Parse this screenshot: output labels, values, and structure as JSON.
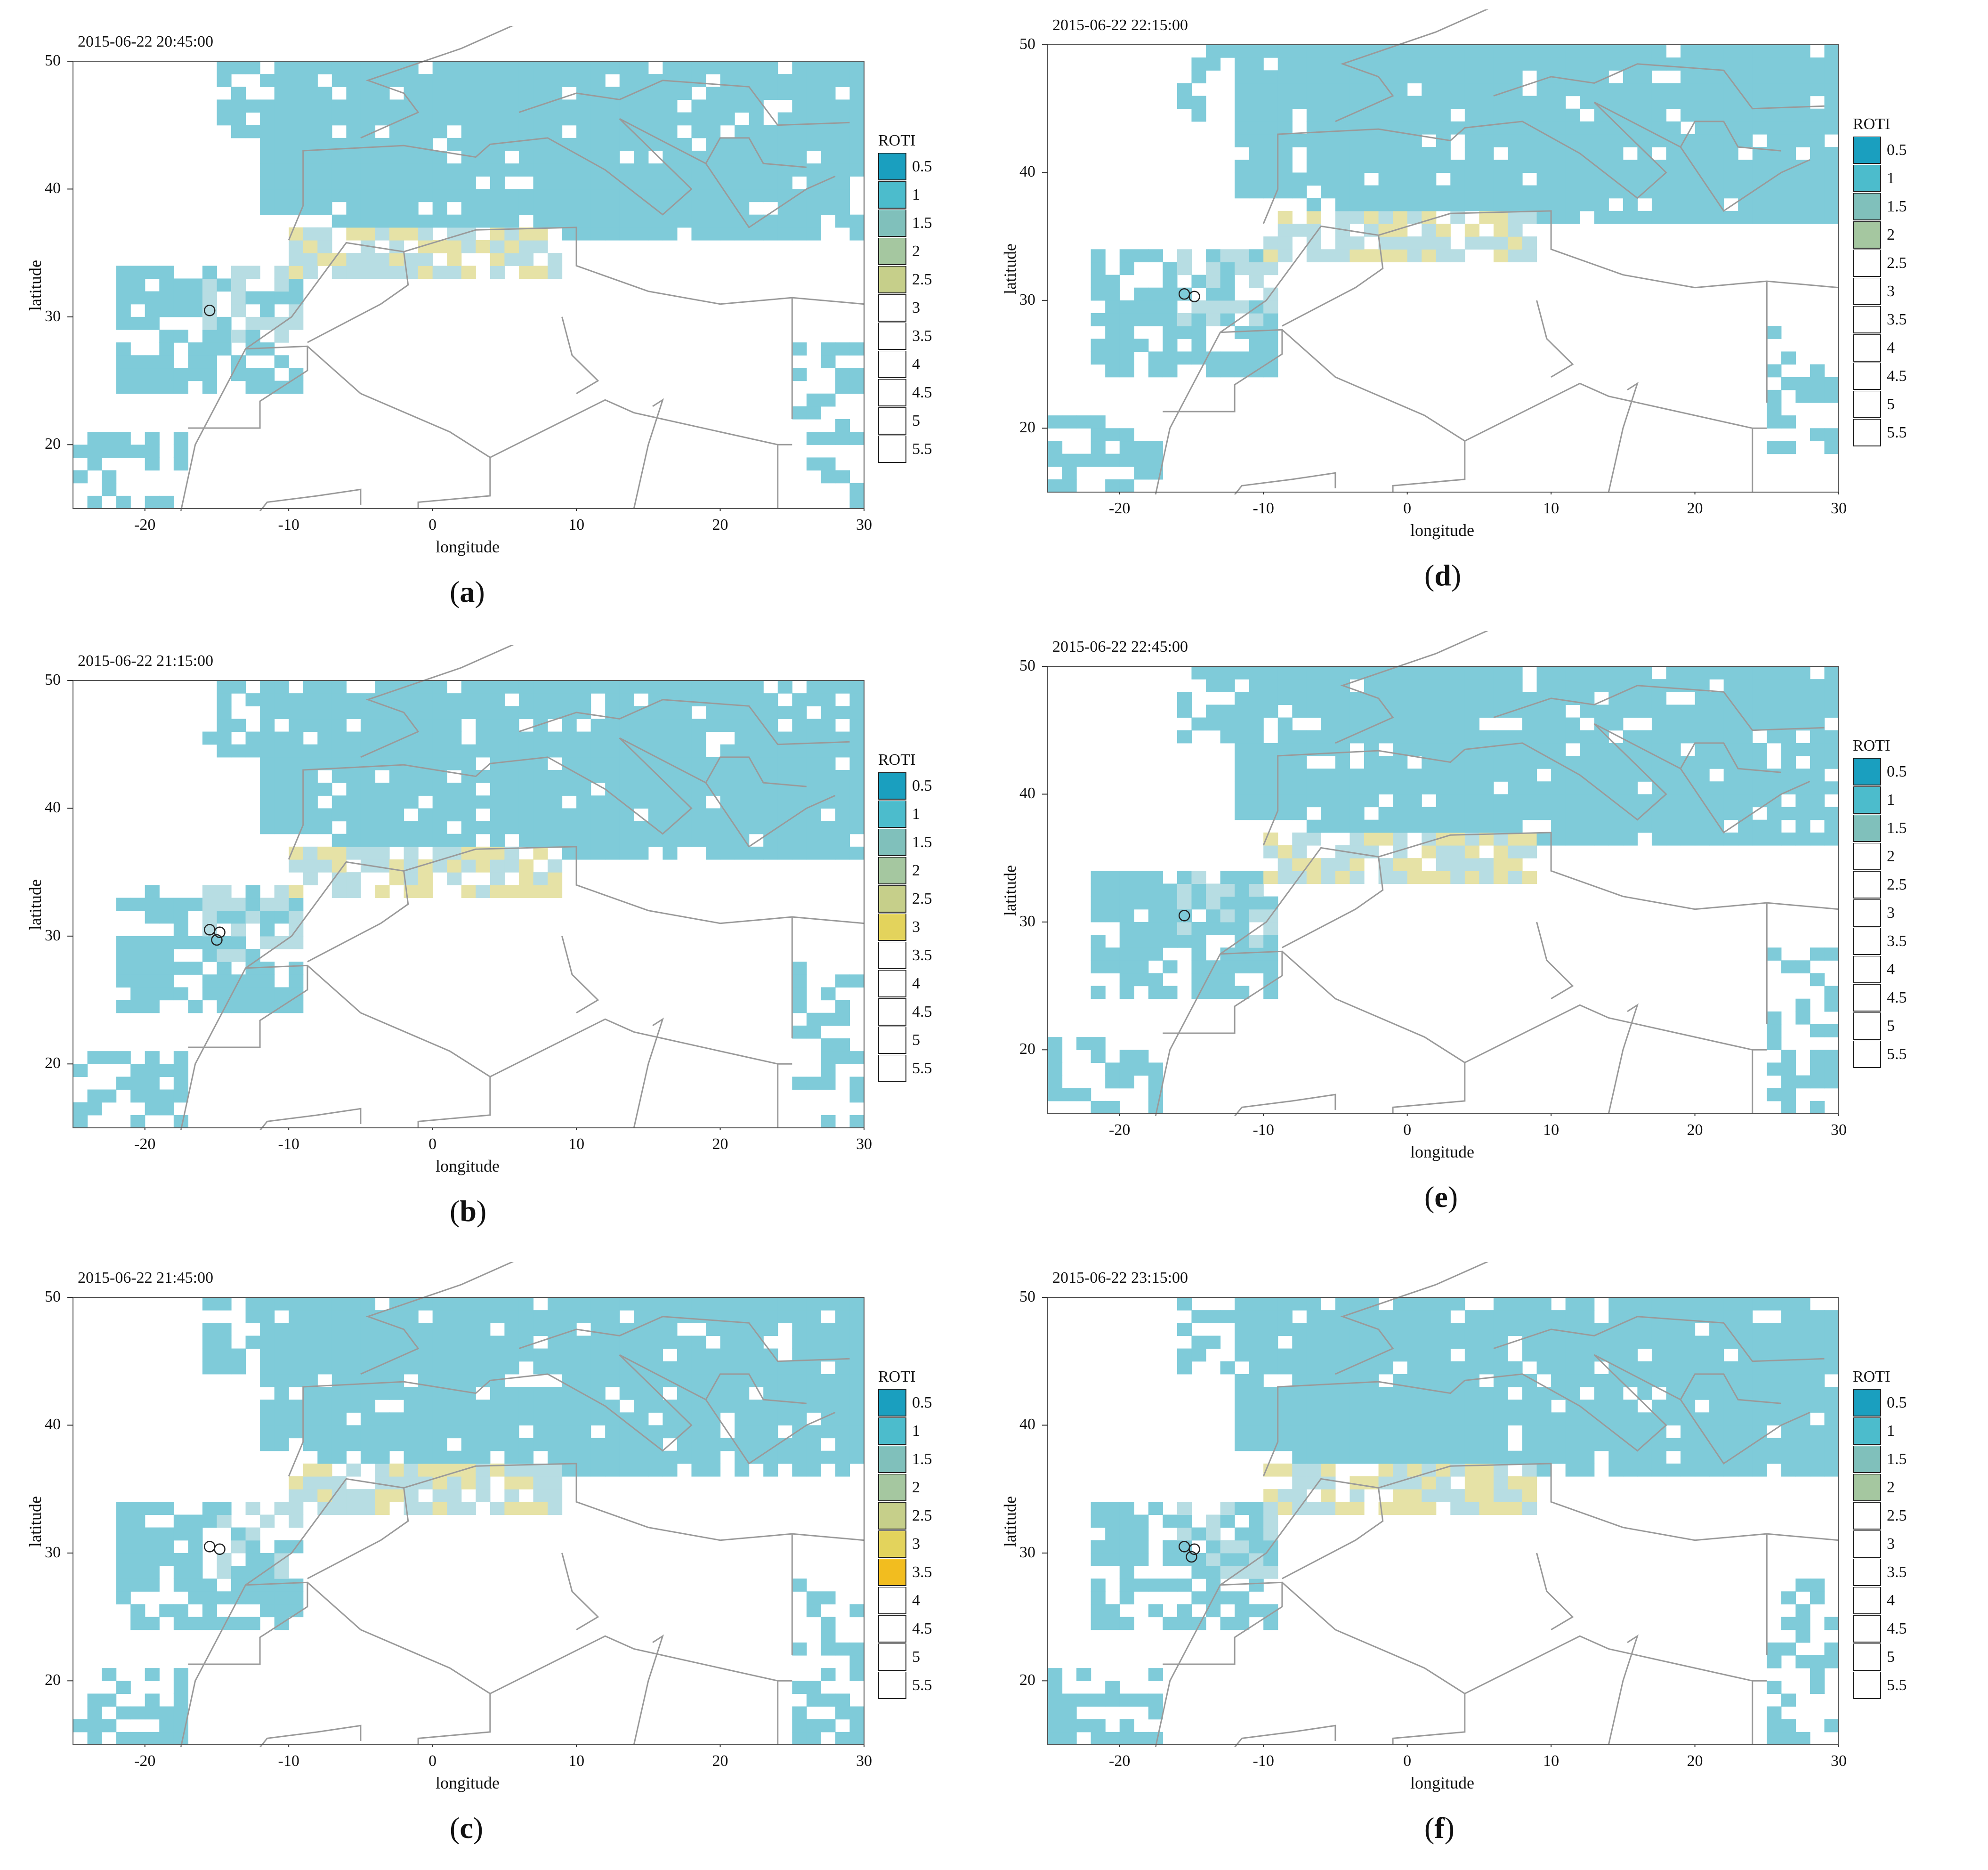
{
  "figure": {
    "panels": [
      {
        "id": "a",
        "timestamp": "2015-06-22 20:45:00",
        "label_letter": "a",
        "legend_levels": [
          "0.5",
          "1",
          "1.5",
          "2",
          "2.5",
          "3",
          "3.5",
          "4",
          "4.5",
          "5",
          "5.5"
        ],
        "legend_colors": [
          "#1a9fbf",
          "#4cbccc",
          "#80c0bb",
          "#a5c7a0",
          "#c6cf8a",
          "#ffffff",
          "#ffffff",
          "#ffffff",
          "#ffffff",
          "#ffffff",
          "#ffffff"
        ]
      },
      {
        "id": "d",
        "timestamp": "2015-06-22 22:15:00",
        "label_letter": "d",
        "legend_levels": [
          "0.5",
          "1",
          "1.5",
          "2",
          "2.5",
          "3",
          "3.5",
          "4",
          "4.5",
          "5",
          "5.5"
        ],
        "legend_colors": [
          "#1a9fbf",
          "#4cbccc",
          "#80c0bb",
          "#a5c7a0",
          "#ffffff",
          "#ffffff",
          "#ffffff",
          "#ffffff",
          "#ffffff",
          "#ffffff",
          "#ffffff"
        ]
      },
      {
        "id": "b",
        "timestamp": "2015-06-22 21:15:00",
        "label_letter": "b",
        "legend_levels": [
          "0.5",
          "1",
          "1.5",
          "2",
          "2.5",
          "3",
          "3.5",
          "4",
          "4.5",
          "5",
          "5.5"
        ],
        "legend_colors": [
          "#1a9fbf",
          "#4cbccc",
          "#80c0bb",
          "#a5c7a0",
          "#c6cf8a",
          "#e3d35c",
          "#ffffff",
          "#ffffff",
          "#ffffff",
          "#ffffff",
          "#ffffff"
        ]
      },
      {
        "id": "e",
        "timestamp": "2015-06-22 22:45:00",
        "label_letter": "e",
        "legend_levels": [
          "0.5",
          "1",
          "1.5",
          "2",
          "2.5",
          "3",
          "3.5",
          "4",
          "4.5",
          "5",
          "5.5"
        ],
        "legend_colors": [
          "#1a9fbf",
          "#4cbccc",
          "#80c0bb",
          "#ffffff",
          "#ffffff",
          "#ffffff",
          "#ffffff",
          "#ffffff",
          "#ffffff",
          "#ffffff",
          "#ffffff"
        ]
      },
      {
        "id": "c",
        "timestamp": "2015-06-22 21:45:00",
        "label_letter": "c",
        "legend_levels": [
          "0.5",
          "1",
          "1.5",
          "2",
          "2.5",
          "3",
          "3.5",
          "4",
          "4.5",
          "5",
          "5.5"
        ],
        "legend_colors": [
          "#1a9fbf",
          "#4cbccc",
          "#80c0bb",
          "#a5c7a0",
          "#c6cf8a",
          "#e3d35c",
          "#f2bd1f",
          "#ffffff",
          "#ffffff",
          "#ffffff",
          "#ffffff"
        ]
      },
      {
        "id": "f",
        "timestamp": "2015-06-22 23:15:00",
        "label_letter": "f",
        "legend_levels": [
          "0.5",
          "1",
          "1.5",
          "2",
          "2.5",
          "3",
          "3.5",
          "4",
          "4.5",
          "5",
          "5.5"
        ],
        "legend_colors": [
          "#1a9fbf",
          "#4cbccc",
          "#80c0bb",
          "#a5c7a0",
          "#ffffff",
          "#ffffff",
          "#ffffff",
          "#ffffff",
          "#ffffff",
          "#ffffff",
          "#ffffff"
        ]
      }
    ],
    "legend_title": "ROTI",
    "x_axis_label": "longitude",
    "y_axis_label": "latitude",
    "x_ticks": [
      "-20",
      "-10",
      "0",
      "10",
      "20",
      "30"
    ],
    "y_ticks": [
      "20",
      "30",
      "40",
      "50"
    ],
    "map_extent": {
      "lon": [
        -25,
        30
      ],
      "lat": [
        15,
        50
      ]
    },
    "colors": {
      "roti_low": "#7fcbd9",
      "roti_mid": "#b7dde3",
      "roti_high": "#e6e2a6",
      "borders": "#9a9a9a"
    }
  }
}
